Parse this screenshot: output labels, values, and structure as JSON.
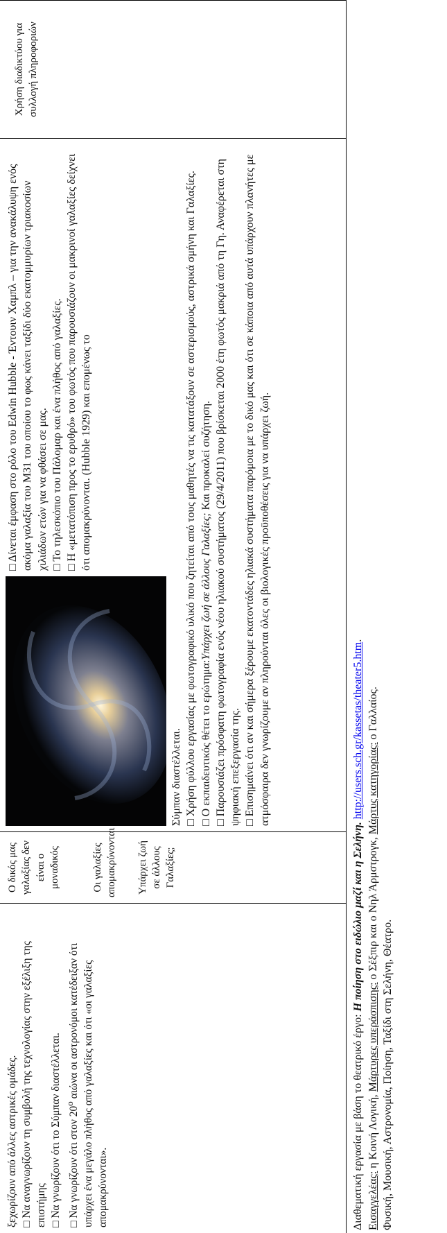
{
  "table": {
    "rows": [
      [
        {
          "items": [
            "ξεχωρίζουν από άλλες αστρικές ομάδες.",
            "□ Να αναγνωρίζουν τη συμβολή της τεχνολογίας στην εξέλιξη της επιστήμης",
            "□ Να γνωρίζουν ότι το Σύμπαν διαστέλλεται."
          ],
          "last": {
            "before": "□ Να γνωρίζουν ότι στον 20",
            "sup": "ο",
            "after": " αιώνα οι αστρονόμοι κατέδειξαν ότι υπάρχει ένα μεγάλο πλήθος από γαλαξίες και ότι «οι γαλαξίες απομακρύνονται»."
          }
        },
        {
          "paragraphs": [
            "Ο δικός μας γαλαξίας δεν είναι ο μοναδικός",
            "Οι γαλαξίες απομακρύνονται",
            "Υπάρχει ζωή σε άλλους Γαλαξίες;"
          ]
        },
        {
          "beside_image": [
            "□ Δίνεται έμφαση στο ρόλο του Edwin Hubble - Έντουιν Χαμπλ – για την ανακάλυψη ενός ακόμα γαλαξία του Μ31 του οποίου το φως κάνει ταξίδι δύο εκατομμυρίων τριακοσίων χιλιάδων ετών για να φθάσει σε μας.",
            "□ Το τηλεσκόπιο του Πάλομαρ και ένα πλήθος από γαλαξίες.",
            "□ Η «μετατόπιση προς το ερυθρό» του φωτός που παρουσιάζουν οι μακρινοί γαλαξίες δείχνει ότι απομακρύνονται. (Hubble 1929) και επομένως το"
          ],
          "continued": "Σύμπαν διαστέλλεται.",
          "item_sheet": "□ Χρήση φύλλου εργασίας με φωτογραφικό υλικό που ζητείται από τους μαθητές να τις κατατάξουν σε αστερισμούς, αστρικά σμήνη και Γαλαξίες.",
          "question": {
            "before": "□ Ο εκπαιδευτικός θέτει το ερώτημα:",
            "italic": "Υπάρχει ζωή σε άλλους Γαλαξίες;",
            "after": " Και προκαλεί συζήτηση."
          },
          "items": [
            "□ Παρουσιάζει πρόσφατη φωτογραφία ενός νέου ηλιακού συστήματος (29/4/2011) που βρίσκεται 2000 έτη φωτός μακριά από τη Γη. Αναφέρεται στη ψηφιακή επεξεργασία της.",
            "□ Επισημαίνει ότι αν και σήμερα ξέρουμε εκατοντάδες ηλιακά συστήματα παρόμοια με το δικό μας και ότι σε κάποια από αυτά υπάρχουν πλανήτες με ατμόσφαιρα δεν γνωρίζουμε αν πληρούνται όλες οι βιολογικές προϋποθέσεις για να υπάρχει ζωή."
          ]
        },
        {
          "text": "Χρήση διαδικτύου για συλλογή πληροφοριών"
        }
      ]
    ]
  },
  "footer": {
    "line1": {
      "before": "Διαθεματική εργασία με βάση το θεατρικό έργο: ",
      "title": "Η ποίηση στο ειδώλιο μαζί και η Σελήνη.",
      "link": "http://users.sch.gr/kassetas/theater5.htm",
      "after": "."
    },
    "line2": [
      {
        "u": "Εισαγγελέας:",
        "t": " η Κοινή Λογική, "
      },
      {
        "u": "Μάρτυρες υπεράσπισης:",
        "t": " ο Σέξπιρ και ο Νηλ Άρμστρογκ, "
      },
      {
        "u": "Μάρτυς κατηγορίας:",
        "t": " ο Γαλλαίος."
      }
    ],
    "line3": "Φυσική, Μουσική, Αστρονομία, Ποίηση, Ταξίδι στη Σελήνη, Θέατρο."
  }
}
